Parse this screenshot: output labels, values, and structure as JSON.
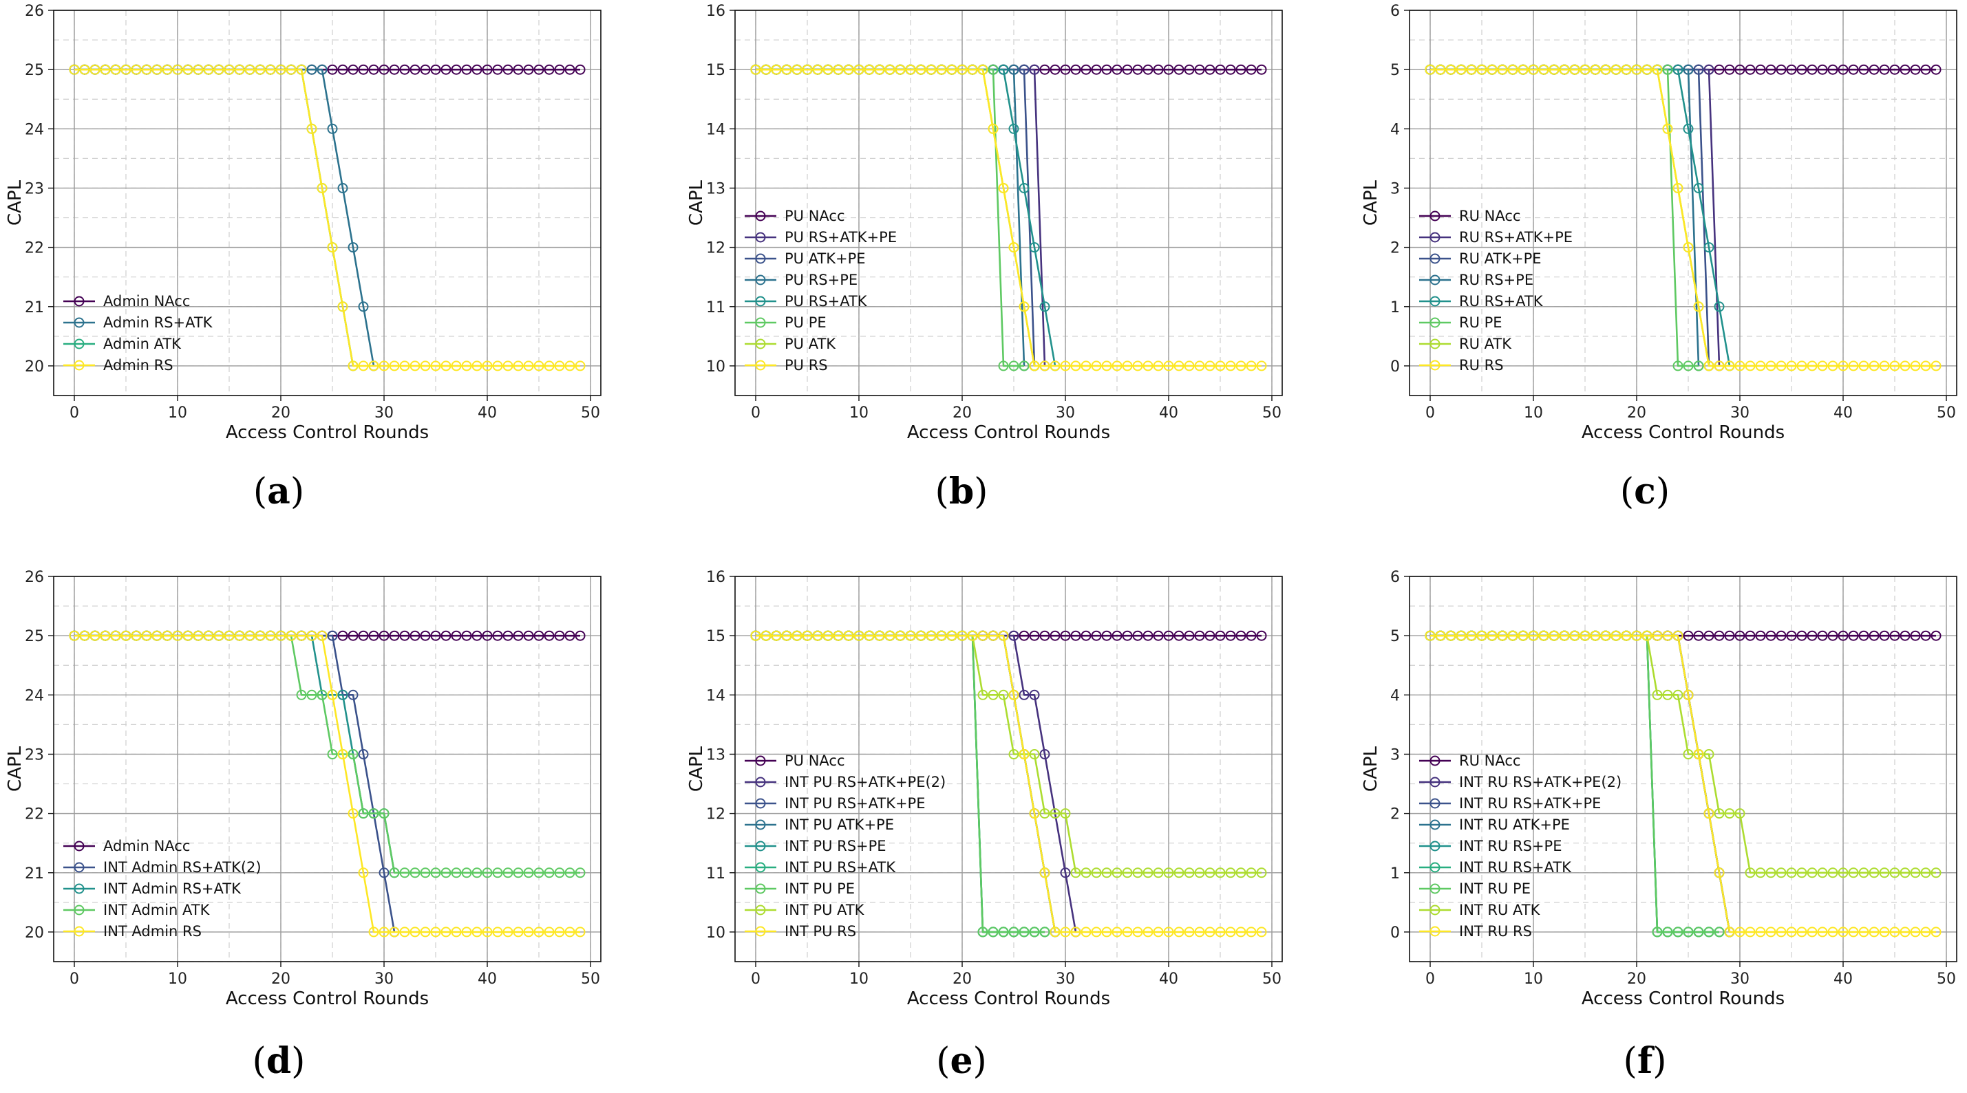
{
  "colors": {
    "NAcc": "#440154",
    "RSATKPE2": "#46327e",
    "RSATKPE": "#3b528b",
    "ATKPE": "#2c728e",
    "RSPE": "#21918c",
    "RSATK": "#28ae80",
    "PE": "#5ec962",
    "ATK": "#addc30",
    "RS": "#fde725"
  },
  "chart_data": [
    {
      "id": "a",
      "label": "a",
      "type": "line",
      "xlabel": "Access Control Rounds",
      "ylabel": "CAPL",
      "xlim": [
        -2,
        51
      ],
      "ylim": [
        19.5,
        26
      ],
      "xticks": [
        0,
        10,
        20,
        30,
        40,
        50
      ],
      "yticks": [
        20,
        21,
        22,
        23,
        24,
        25,
        26
      ],
      "legend_position": "lower-left",
      "series": [
        {
          "name": "Admin NAcc",
          "color_key": "NAcc",
          "high": 25,
          "low": 25,
          "hold_until": 49,
          "end_round": 49
        },
        {
          "name": "Admin RS+ATK",
          "color_key": "ATKPE",
          "high": 25,
          "low": 20,
          "drop_rounds": [
            24,
            29
          ],
          "end_round": 29
        },
        {
          "name": "Admin ATK",
          "color_key": "RSATK",
          "high": 25,
          "low": 20,
          "drop_rounds": [
            22,
            27
          ],
          "end_round": 27
        },
        {
          "name": "Admin RS",
          "color_key": "RS",
          "high": 25,
          "low": 20,
          "drop_rounds": [
            22,
            27
          ],
          "end_round": 49
        }
      ]
    },
    {
      "id": "b",
      "label": "b",
      "type": "line",
      "xlabel": "Access Control Rounds",
      "ylabel": "CAPL",
      "xlim": [
        -2,
        51
      ],
      "ylim": [
        9.5,
        16
      ],
      "xticks": [
        0,
        10,
        20,
        30,
        40,
        50
      ],
      "yticks": [
        10,
        11,
        12,
        13,
        14,
        15,
        16
      ],
      "legend_position": "lower-left",
      "series": [
        {
          "name": "PU NAcc",
          "color_key": "NAcc",
          "high": 15,
          "low": 15,
          "hold_until": 49,
          "end_round": 49
        },
        {
          "name": "PU RS+ATK+PE",
          "color_key": "RSATKPE2",
          "high": 15,
          "low": 10,
          "drop_rounds": [
            27,
            28
          ],
          "end_round": 28
        },
        {
          "name": "PU ATK+PE",
          "color_key": "RSATKPE",
          "high": 15,
          "low": 10,
          "drop_rounds": [
            26,
            27
          ],
          "end_round": 27
        },
        {
          "name": "PU RS+PE",
          "color_key": "ATKPE",
          "high": 15,
          "low": 10,
          "drop_rounds": [
            25,
            26
          ],
          "end_round": 26
        },
        {
          "name": "PU RS+ATK",
          "color_key": "RSPE",
          "high": 15,
          "low": 10,
          "drop_rounds": [
            24,
            29
          ],
          "end_round": 29
        },
        {
          "name": "PU PE",
          "color_key": "PE",
          "high": 15,
          "low": 10,
          "drop_rounds": [
            23,
            24
          ],
          "end_round": 26
        },
        {
          "name": "PU ATK",
          "color_key": "ATK",
          "high": 15,
          "low": 10,
          "drop_rounds": [
            22,
            27
          ],
          "end_round": 27
        },
        {
          "name": "PU RS",
          "color_key": "RS",
          "high": 15,
          "low": 10,
          "drop_rounds": [
            22,
            27
          ],
          "end_round": 49
        }
      ]
    },
    {
      "id": "c",
      "label": "c",
      "type": "line",
      "xlabel": "Access Control Rounds",
      "ylabel": "CAPL",
      "xlim": [
        -2,
        51
      ],
      "ylim": [
        -0.5,
        6
      ],
      "xticks": [
        0,
        10,
        20,
        30,
        40,
        50
      ],
      "yticks": [
        0,
        1,
        2,
        3,
        4,
        5,
        6
      ],
      "legend_position": "lower-left",
      "series": [
        {
          "name": "RU NAcc",
          "color_key": "NAcc",
          "high": 5,
          "low": 5,
          "hold_until": 49,
          "end_round": 49
        },
        {
          "name": "RU RS+ATK+PE",
          "color_key": "RSATKPE2",
          "high": 5,
          "low": 0,
          "drop_rounds": [
            27,
            28
          ],
          "end_round": 28
        },
        {
          "name": "RU ATK+PE",
          "color_key": "RSATKPE",
          "high": 5,
          "low": 0,
          "drop_rounds": [
            26,
            27
          ],
          "end_round": 27
        },
        {
          "name": "RU RS+PE",
          "color_key": "ATKPE",
          "high": 5,
          "low": 0,
          "drop_rounds": [
            25,
            26
          ],
          "end_round": 26
        },
        {
          "name": "RU RS+ATK",
          "color_key": "RSPE",
          "high": 5,
          "low": 0,
          "drop_rounds": [
            24,
            29
          ],
          "end_round": 29
        },
        {
          "name": "RU PE",
          "color_key": "PE",
          "high": 5,
          "low": 0,
          "drop_rounds": [
            23,
            24
          ],
          "end_round": 26
        },
        {
          "name": "RU ATK",
          "color_key": "ATK",
          "high": 5,
          "low": 0,
          "drop_rounds": [
            22,
            27
          ],
          "end_round": 27
        },
        {
          "name": "RU RS",
          "color_key": "RS",
          "high": 5,
          "low": 0,
          "drop_rounds": [
            22,
            27
          ],
          "end_round": 49
        }
      ]
    },
    {
      "id": "d",
      "label": "d",
      "type": "line",
      "xlabel": "Access Control Rounds",
      "ylabel": "CAPL",
      "xlim": [
        -2,
        51
      ],
      "ylim": [
        19.5,
        26
      ],
      "xticks": [
        0,
        10,
        20,
        30,
        40,
        50
      ],
      "yticks": [
        20,
        21,
        22,
        23,
        24,
        25,
        26
      ],
      "legend_position": "lower-left",
      "series": [
        {
          "name": "Admin NAcc",
          "color_key": "NAcc",
          "high": 25,
          "low": 25,
          "hold_until": 49,
          "end_round": 49
        },
        {
          "name": "INT Admin RS+ATK(2)",
          "color_key": "RSATKPE",
          "stepped": true,
          "high": 25,
          "low": 20,
          "steps": [
            [
              25,
              25
            ],
            [
              26,
              24
            ],
            [
              27,
              24
            ],
            [
              28,
              23
            ],
            [
              29,
              22
            ],
            [
              30,
              21
            ],
            [
              31,
              20
            ]
          ],
          "end_round": 31
        },
        {
          "name": "INT Admin RS+ATK",
          "color_key": "RSPE",
          "stepped": true,
          "high": 25,
          "low": 21,
          "steps": [
            [
              24,
              24
            ],
            [
              25,
              24
            ],
            [
              26,
              24
            ],
            [
              27,
              23
            ],
            [
              28,
              22
            ],
            [
              29,
              22
            ],
            [
              30,
              22
            ],
            [
              31,
              21
            ]
          ],
          "end_round": 31
        },
        {
          "name": "INT Admin ATK",
          "color_key": "PE",
          "stepped": true,
          "high": 25,
          "low": 21,
          "steps": [
            [
              21,
              25
            ],
            [
              22,
              24
            ],
            [
              23,
              24
            ],
            [
              24,
              24
            ],
            [
              25,
              23
            ],
            [
              26,
              23
            ],
            [
              27,
              23
            ],
            [
              28,
              22
            ],
            [
              29,
              22
            ],
            [
              30,
              22
            ],
            [
              31,
              21
            ]
          ],
          "end_round": 49
        },
        {
          "name": "INT Admin RS",
          "color_key": "RS",
          "stepped": true,
          "high": 25,
          "low": 20,
          "steps": [
            [
              24,
              25
            ],
            [
              25,
              24
            ],
            [
              26,
              23
            ],
            [
              27,
              22
            ],
            [
              28,
              21
            ],
            [
              29,
              20
            ]
          ],
          "end_round": 49
        }
      ]
    },
    {
      "id": "e",
      "label": "e",
      "type": "line",
      "xlabel": "Access Control Rounds",
      "ylabel": "CAPL",
      "xlim": [
        -2,
        51
      ],
      "ylim": [
        9.5,
        16
      ],
      "xticks": [
        0,
        10,
        20,
        30,
        40,
        50
      ],
      "yticks": [
        10,
        11,
        12,
        13,
        14,
        15,
        16
      ],
      "legend_position": "lower-left",
      "series": [
        {
          "name": "PU NAcc",
          "color_key": "NAcc",
          "high": 15,
          "low": 15,
          "hold_until": 49,
          "end_round": 49
        },
        {
          "name": "INT PU RS+ATK+PE(2)",
          "color_key": "RSATKPE2",
          "stepped": true,
          "high": 15,
          "low": 10,
          "steps": [
            [
              25,
              15
            ],
            [
              26,
              14
            ],
            [
              27,
              14
            ],
            [
              28,
              13
            ],
            [
              29,
              12
            ],
            [
              30,
              11
            ],
            [
              31,
              10
            ]
          ],
          "end_round": 31
        },
        {
          "name": "INT PU RS+ATK+PE",
          "color_key": "RSATKPE",
          "stepped": true,
          "high": 15,
          "low": 10,
          "steps": [
            [
              24,
              15
            ],
            [
              25,
              14
            ],
            [
              26,
              13
            ],
            [
              27,
              12
            ],
            [
              28,
              11
            ],
            [
              29,
              10
            ]
          ],
          "end_round": 29
        },
        {
          "name": "INT PU ATK+PE",
          "color_key": "ATKPE",
          "stepped": true,
          "high": 15,
          "low": 10,
          "steps": [
            [
              24,
              15
            ],
            [
              25,
              14
            ],
            [
              26,
              13
            ],
            [
              27,
              12
            ],
            [
              28,
              11
            ],
            [
              29,
              10
            ]
          ],
          "end_round": 29
        },
        {
          "name": "INT PU RS+PE",
          "color_key": "RSPE",
          "stepped": true,
          "high": 15,
          "low": 10,
          "steps": [
            [
              21,
              15
            ],
            [
              22,
              10
            ]
          ],
          "end_round": 28
        },
        {
          "name": "INT PU RS+ATK",
          "color_key": "RSATK",
          "stepped": true,
          "high": 15,
          "low": 10,
          "steps": [
            [
              21,
              15
            ],
            [
              22,
              10
            ]
          ],
          "end_round": 28
        },
        {
          "name": "INT PU PE",
          "color_key": "PE",
          "stepped": true,
          "high": 15,
          "low": 10,
          "steps": [
            [
              21,
              15
            ],
            [
              22,
              10
            ]
          ],
          "end_round": 28
        },
        {
          "name": "INT PU ATK",
          "color_key": "ATK",
          "stepped": true,
          "high": 15,
          "low": 11,
          "steps": [
            [
              21,
              15
            ],
            [
              22,
              14
            ],
            [
              23,
              14
            ],
            [
              24,
              14
            ],
            [
              25,
              13
            ],
            [
              26,
              13
            ],
            [
              27,
              13
            ],
            [
              28,
              12
            ],
            [
              29,
              12
            ],
            [
              30,
              12
            ],
            [
              31,
              11
            ]
          ],
          "end_round": 49
        },
        {
          "name": "INT PU RS",
          "color_key": "RS",
          "stepped": true,
          "high": 15,
          "low": 10,
          "steps": [
            [
              24,
              15
            ],
            [
              25,
              14
            ],
            [
              26,
              13
            ],
            [
              27,
              12
            ],
            [
              28,
              11
            ],
            [
              29,
              10
            ]
          ],
          "end_round": 49
        }
      ]
    },
    {
      "id": "f",
      "label": "f",
      "type": "line",
      "xlabel": "Access Control Rounds",
      "ylabel": "CAPL",
      "xlim": [
        -2,
        51
      ],
      "ylim": [
        -0.5,
        6
      ],
      "xticks": [
        0,
        10,
        20,
        30,
        40,
        50
      ],
      "yticks": [
        0,
        1,
        2,
        3,
        4,
        5,
        6
      ],
      "legend_position": "lower-left",
      "series": [
        {
          "name": "RU NAcc",
          "color_key": "NAcc",
          "high": 5,
          "low": 5,
          "hold_until": 49,
          "end_round": 49
        },
        {
          "name": "INT RU RS+ATK+PE(2)",
          "color_key": "RSATKPE2",
          "stepped": true,
          "high": 5,
          "low": 0,
          "steps": [
            [
              24,
              5
            ],
            [
              25,
              4
            ],
            [
              26,
              3
            ],
            [
              27,
              2
            ],
            [
              28,
              1
            ],
            [
              29,
              0
            ]
          ],
          "end_round": 29
        },
        {
          "name": "INT RU RS+ATK+PE",
          "color_key": "RSATKPE",
          "stepped": true,
          "high": 5,
          "low": 0,
          "steps": [
            [
              24,
              5
            ],
            [
              25,
              4
            ],
            [
              26,
              3
            ],
            [
              27,
              2
            ],
            [
              28,
              1
            ],
            [
              29,
              0
            ]
          ],
          "end_round": 29
        },
        {
          "name": "INT RU ATK+PE",
          "color_key": "ATKPE",
          "stepped": true,
          "high": 5,
          "low": 0,
          "steps": [
            [
              24,
              5
            ],
            [
              25,
              4
            ],
            [
              26,
              3
            ],
            [
              27,
              2
            ],
            [
              28,
              1
            ],
            [
              29,
              0
            ]
          ],
          "end_round": 29
        },
        {
          "name": "INT RU RS+PE",
          "color_key": "RSPE",
          "stepped": true,
          "high": 5,
          "low": 0,
          "steps": [
            [
              21,
              5
            ],
            [
              22,
              0
            ]
          ],
          "end_round": 28
        },
        {
          "name": "INT RU RS+ATK",
          "color_key": "RSATK",
          "stepped": true,
          "high": 5,
          "low": 0,
          "steps": [
            [
              21,
              5
            ],
            [
              22,
              0
            ]
          ],
          "end_round": 28
        },
        {
          "name": "INT RU PE",
          "color_key": "PE",
          "stepped": true,
          "high": 5,
          "low": 0,
          "steps": [
            [
              21,
              5
            ],
            [
              22,
              0
            ]
          ],
          "end_round": 28
        },
        {
          "name": "INT RU ATK",
          "color_key": "ATK",
          "stepped": true,
          "high": 5,
          "low": 1,
          "steps": [
            [
              21,
              5
            ],
            [
              22,
              4
            ],
            [
              23,
              4
            ],
            [
              24,
              4
            ],
            [
              25,
              3
            ],
            [
              26,
              3
            ],
            [
              27,
              3
            ],
            [
              28,
              2
            ],
            [
              29,
              2
            ],
            [
              30,
              2
            ],
            [
              31,
              1
            ]
          ],
          "end_round": 49
        },
        {
          "name": "INT RU RS",
          "color_key": "RS",
          "stepped": true,
          "high": 5,
          "low": 0,
          "steps": [
            [
              24,
              5
            ],
            [
              25,
              4
            ],
            [
              26,
              3
            ],
            [
              27,
              2
            ],
            [
              28,
              1
            ],
            [
              29,
              0
            ]
          ],
          "end_round": 49
        }
      ]
    }
  ]
}
